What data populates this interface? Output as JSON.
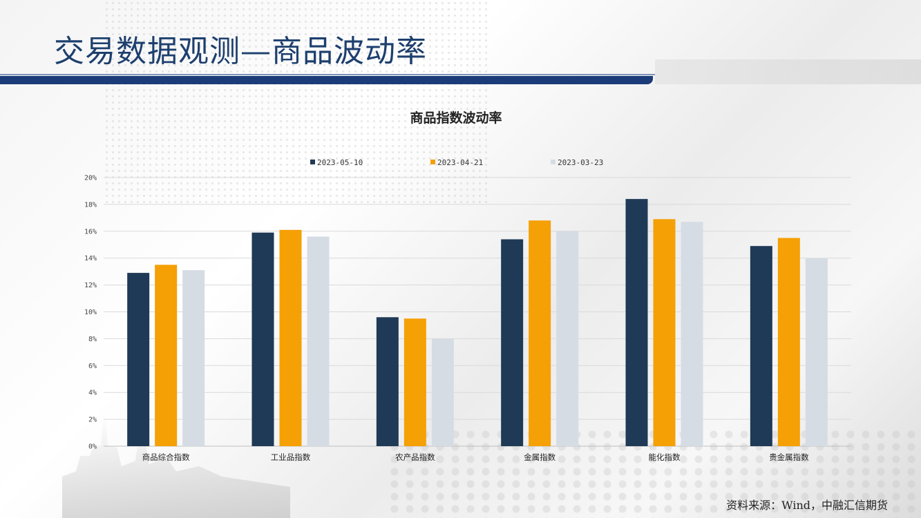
{
  "page": {
    "title": "交易数据观测—商品波动率",
    "source": "资料来源：Wind，中融汇信期货"
  },
  "colors": {
    "title_text": "#1d3f6e",
    "title_rule": "#1b3c78"
  },
  "chart_data": {
    "type": "bar",
    "title": "商品指数波动率",
    "categories": [
      "商品综合指数",
      "工业品指数",
      "农产品指数",
      "金属指数",
      "能化指数",
      "贵金属指数"
    ],
    "series": [
      {
        "name": "2023-05-10",
        "color": "#1f3a56",
        "values": [
          12.9,
          15.9,
          9.6,
          15.4,
          18.4,
          14.9
        ]
      },
      {
        "name": "2023-04-21",
        "color": "#f5a005",
        "values": [
          13.5,
          16.1,
          9.5,
          16.8,
          16.9,
          15.5
        ]
      },
      {
        "name": "2023-03-23",
        "color": "#d6dce4",
        "values": [
          13.1,
          15.6,
          8.0,
          16.0,
          16.7,
          14.0
        ]
      }
    ],
    "ylim": [
      0,
      20
    ],
    "yticks": [
      0,
      2,
      4,
      6,
      8,
      10,
      12,
      14,
      16,
      18,
      20
    ],
    "ytick_labels": [
      "0%",
      "2%",
      "4%",
      "6%",
      "8%",
      "10%",
      "12%",
      "14%",
      "16%",
      "18%",
      "20%"
    ],
    "ytick_unit": "%",
    "grid": true,
    "legend_position": "top"
  }
}
